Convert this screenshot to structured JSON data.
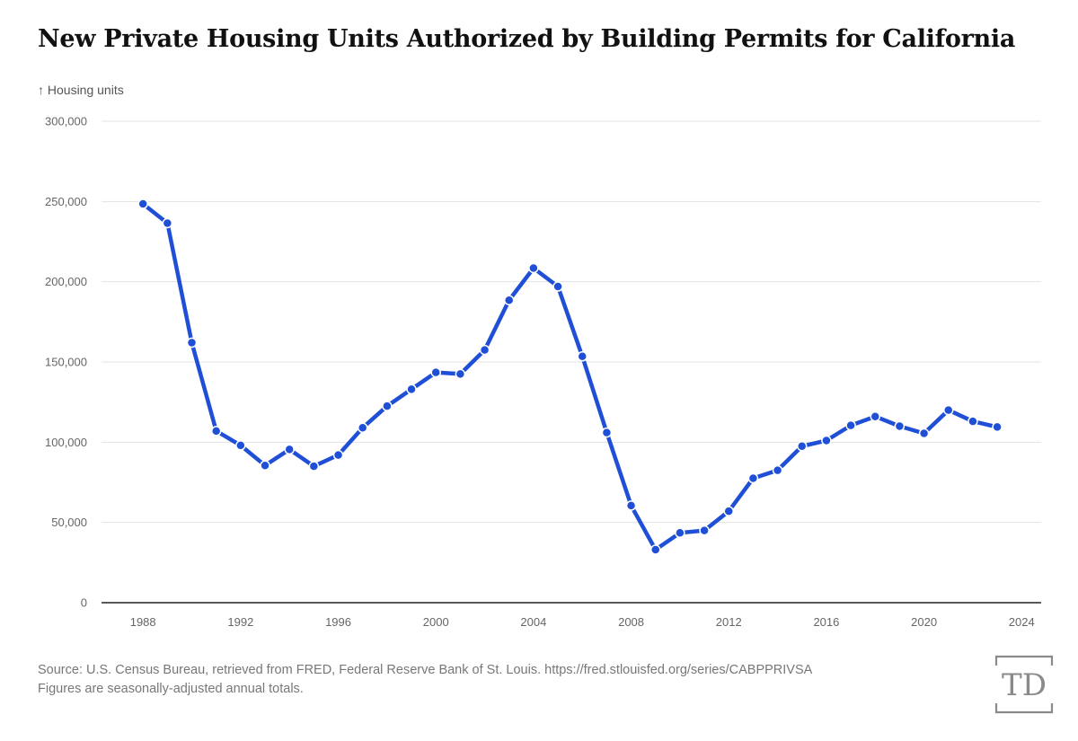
{
  "title": "New Private Housing Units Authorized by Building Permits for California",
  "unit_label": "↑ Housing units",
  "source_line": "Source: U.S. Census Bureau, retrieved from FRED, Federal Reserve Bank of St. Louis. https://fred.stlouisfed.org/series/CABPPRIVSA",
  "note_line": "Figures are seasonally-adjusted annual totals.",
  "logo_text": "TD",
  "colors": {
    "line": "#1f4fd6",
    "grid": "#e3e3e3",
    "axis": "#222222",
    "logo": "#8a8a8a"
  },
  "chart_data": {
    "type": "line",
    "title": "New Private Housing Units Authorized by Building Permits for California",
    "xlabel": "",
    "ylabel": "Housing units",
    "xlim": [
      1986.3,
      2024.8
    ],
    "ylim": [
      0,
      300000
    ],
    "x_ticks": [
      1988,
      1992,
      1996,
      2000,
      2004,
      2008,
      2012,
      2016,
      2020,
      2024
    ],
    "y_ticks": [
      0,
      50000,
      100000,
      150000,
      200000,
      250000,
      300000
    ],
    "y_tick_labels": [
      "0",
      "50,000",
      "100,000",
      "150,000",
      "200,000",
      "250,000",
      "300,000"
    ],
    "grid": true,
    "series": [
      {
        "name": "Housing units",
        "x": [
          1988,
          1989,
          1990,
          1991,
          1992,
          1993,
          1994,
          1995,
          1996,
          1997,
          1998,
          1999,
          2000,
          2001,
          2002,
          2003,
          2004,
          2005,
          2006,
          2007,
          2008,
          2009,
          2010,
          2011,
          2012,
          2013,
          2014,
          2015,
          2016,
          2017,
          2018,
          2019,
          2020,
          2021,
          2022,
          2023
        ],
        "values": [
          248500,
          236500,
          162000,
          107000,
          98000,
          85500,
          95500,
          85000,
          92000,
          109000,
          122500,
          133000,
          143500,
          142500,
          157500,
          188500,
          208500,
          197000,
          153500,
          106000,
          60500,
          33000,
          43500,
          45000,
          57000,
          77500,
          82500,
          97500,
          101000,
          110500,
          116000,
          110000,
          105500,
          120000,
          113000,
          109500
        ]
      }
    ]
  }
}
